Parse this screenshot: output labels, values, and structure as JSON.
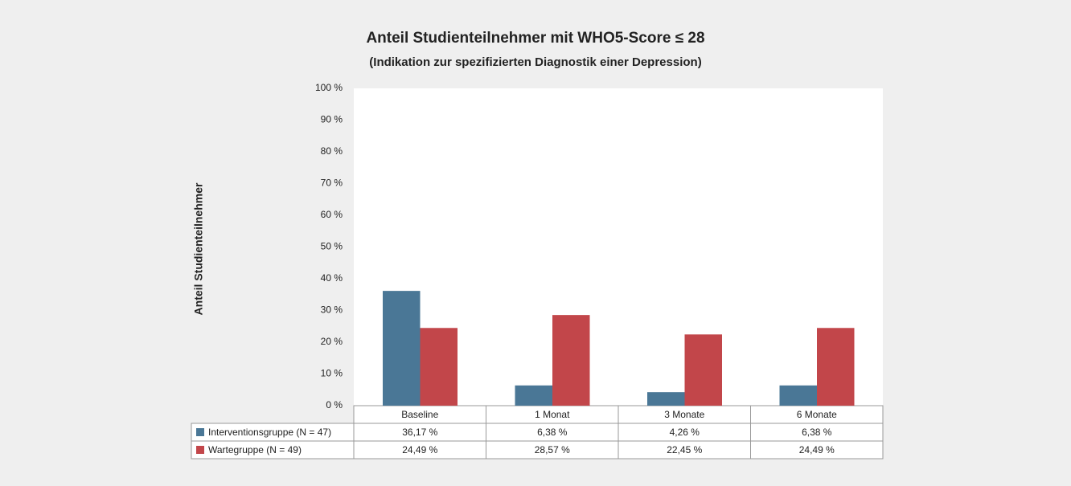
{
  "chart_data": {
    "type": "bar",
    "title": "Anteil Studienteilnehmer mit WHO5-Score ≤ 28",
    "subtitle": "(Indikation zur spezifizierten Diagnostik einer Depression)",
    "y_label": "Anteil Studienteilnehmer",
    "categories": [
      "Baseline",
      "1 Monat",
      "3 Monate",
      "6 Monate"
    ],
    "series": [
      {
        "name": "Interventionsgruppe (N = 47)",
        "color": "#4a7796",
        "values": [
          36.17,
          6.38,
          4.26,
          6.38
        ],
        "value_labels": [
          "36,17 %",
          "6,38 %",
          "4,26 %",
          "6,38 %"
        ]
      },
      {
        "name": "Wartegruppe (N = 49)",
        "color": "#c2464a",
        "values": [
          24.49,
          28.57,
          22.45,
          24.49
        ],
        "value_labels": [
          "24,49 %",
          "28,57 %",
          "22,45 %",
          "24,49 %"
        ]
      }
    ],
    "ylim": [
      0,
      100
    ],
    "yticks": [
      {
        "value": 0,
        "label": "0 %"
      },
      {
        "value": 10,
        "label": "10 %"
      },
      {
        "value": 20,
        "label": "20 %"
      },
      {
        "value": 30,
        "label": "30 %"
      },
      {
        "value": 40,
        "label": "40 %"
      },
      {
        "value": 50,
        "label": "50 %"
      },
      {
        "value": 60,
        "label": "60 %"
      },
      {
        "value": 70,
        "label": "70 %"
      },
      {
        "value": 80,
        "label": "80 %"
      },
      {
        "value": 90,
        "label": "90 %"
      },
      {
        "value": 100,
        "label": "100 %"
      }
    ],
    "grid": false
  }
}
